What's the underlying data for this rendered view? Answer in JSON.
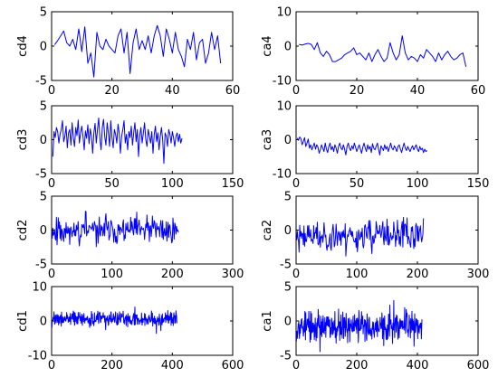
{
  "figure": {
    "background": "#ffffff",
    "line_color": "#0000ff"
  },
  "chart_data": [
    {
      "type": "line",
      "ylabel": "cd4",
      "xlim": [
        0,
        60
      ],
      "ylim": [
        -5,
        5
      ],
      "xticks": [
        0,
        20,
        40,
        60
      ],
      "yticks": [
        -5,
        0,
        5
      ],
      "x": [
        1,
        2,
        3,
        4,
        5,
        6,
        7,
        8,
        9,
        10,
        11,
        12,
        13,
        14,
        15,
        16,
        17,
        18,
        19,
        20,
        21,
        22,
        23,
        24,
        25,
        26,
        27,
        28,
        29,
        30,
        31,
        32,
        33,
        34,
        35,
        36,
        37,
        38,
        39,
        40,
        41,
        42,
        43,
        44,
        45,
        46,
        47,
        48,
        49,
        50,
        51,
        52,
        53,
        54,
        55,
        56
      ],
      "series": [
        {
          "values": [
            0.2,
            0.8,
            1.5,
            2.2,
            0.5,
            0.0,
            1.0,
            -0.5,
            2.5,
            -0.8,
            2.8,
            -2.5,
            -1.0,
            -4.5,
            2.0,
            0.0,
            -0.5,
            1.0,
            0.0,
            -0.5,
            -1.0,
            1.5,
            2.5,
            -1.0,
            2.0,
            -4.0,
            0.5,
            2.5,
            -0.5,
            0.8,
            -0.5,
            1.5,
            -1.0,
            1.5,
            3.0,
            1.5,
            -1.5,
            2.5,
            1.0,
            -1.0,
            2.0,
            -0.5,
            -1.5,
            -3.0,
            1.0,
            -0.5,
            2.0,
            -2.0,
            0.5,
            1.0,
            -2.5,
            -1.0,
            2.0,
            -0.5,
            1.5,
            -2.5
          ]
        }
      ]
    },
    {
      "type": "line",
      "ylabel": "ca4",
      "xlim": [
        0,
        60
      ],
      "ylim": [
        -10,
        10
      ],
      "xticks": [
        0,
        20,
        40,
        60
      ],
      "yticks": [
        -10,
        0,
        10
      ],
      "x": [
        1,
        2,
        3,
        4,
        5,
        6,
        7,
        8,
        9,
        10,
        11,
        12,
        13,
        14,
        15,
        16,
        17,
        18,
        19,
        20,
        21,
        22,
        23,
        24,
        25,
        26,
        27,
        28,
        29,
        30,
        31,
        32,
        33,
        34,
        35,
        36,
        37,
        38,
        39,
        40,
        41,
        42,
        43,
        44,
        45,
        46,
        47,
        48,
        49,
        50,
        51,
        52,
        53,
        54,
        55,
        56
      ],
      "series": [
        {
          "values": [
            0.5,
            0.3,
            0.6,
            0.8,
            0.5,
            -1.0,
            1.0,
            -2.0,
            -3.0,
            -1.5,
            -2.5,
            -4.5,
            -4.5,
            -4.0,
            -3.5,
            -2.5,
            -2.0,
            -1.5,
            -0.5,
            -2.5,
            -2.0,
            -3.0,
            -4.0,
            -2.0,
            -4.5,
            -2.5,
            -1.0,
            -3.0,
            -4.5,
            -3.5,
            1.0,
            -2.0,
            -4.0,
            -2.5,
            3.0,
            -2.0,
            -4.0,
            -3.0,
            -3.5,
            -4.5,
            -2.5,
            -3.5,
            -1.0,
            -2.0,
            -3.0,
            -4.5,
            -2.0,
            -4.0,
            -2.5,
            -1.5,
            -3.0,
            -4.0,
            -3.5,
            -2.5,
            -2.0,
            -6.0
          ]
        }
      ]
    },
    {
      "type": "line",
      "ylabel": "cd3",
      "xlim": [
        0,
        150
      ],
      "ylim": [
        -5,
        5
      ],
      "xticks": [
        0,
        50,
        100,
        150
      ],
      "yticks": [
        -5,
        0,
        5
      ],
      "x_step": 1,
      "series": [
        {
          "values": [
            -2.5,
            1.2,
            0.3,
            1.8,
            1.2,
            -0.5,
            0.8,
            1.5,
            2.8,
            -0.3,
            0.5,
            2.0,
            -1.2,
            1.0,
            1.5,
            -0.8,
            2.5,
            0.3,
            -1.0,
            1.8,
            0.6,
            2.9,
            -0.5,
            1.0,
            2.0,
            0.5,
            -1.5,
            1.3,
            0.2,
            2.2,
            -0.6,
            1.6,
            0.5,
            -2.0,
            1.0,
            2.4,
            -0.5,
            1.5,
            3.2,
            0.2,
            -1.5,
            1.8,
            3.0,
            0.5,
            -0.8,
            2.5,
            1.0,
            -1.0,
            2.8,
            0.3,
            -1.2,
            1.5,
            0.8,
            -0.5,
            2.3,
            1.0,
            -2.0,
            0.5,
            1.5,
            2.8,
            -0.5,
            0.8,
            -1.5,
            1.2,
            0.3,
            2.0,
            -0.8,
            1.0,
            2.5,
            -0.3,
            1.5,
            -2.5,
            0.6,
            1.8,
            -0.5,
            1.0,
            2.5,
            0.0,
            -1.0,
            1.5,
            0.5,
            -0.5,
            1.2,
            -2.0,
            0.8,
            2.0,
            -0.3,
            1.0,
            -1.5,
            0.5,
            1.8,
            0.0,
            -3.5,
            1.0,
            0.5,
            -1.0,
            1.5,
            0.8,
            -0.5,
            1.2,
            0.3,
            -1.0,
            0.5,
            1.0,
            -0.3,
            0.8,
            -0.5,
            0.2
          ]
        }
      ]
    },
    {
      "type": "line",
      "ylabel": "ca3",
      "xlim": [
        0,
        150
      ],
      "ylim": [
        -10,
        10
      ],
      "xticks": [
        0,
        50,
        100,
        150
      ],
      "yticks": [
        -10,
        0,
        10
      ],
      "x_step": 1,
      "series": [
        {
          "values": [
            0.5,
            -0.2,
            0.8,
            0.3,
            -1.5,
            -0.5,
            0.6,
            -2.0,
            -1.0,
            0.2,
            -2.5,
            -1.5,
            -3.0,
            -2.0,
            -1.0,
            -2.8,
            -1.5,
            -2.2,
            -4.0,
            -3.0,
            -1.5,
            -2.5,
            -3.5,
            -1.0,
            -2.8,
            -3.8,
            -2.0,
            -1.0,
            -3.0,
            -2.0,
            -3.5,
            -1.5,
            -2.5,
            -4.0,
            -2.0,
            -1.0,
            -2.5,
            -3.0,
            -1.5,
            -2.8,
            -4.5,
            -2.0,
            -1.0,
            -2.5,
            -3.2,
            -1.8,
            -2.8,
            -1.0,
            -2.2,
            -3.5,
            -2.5,
            -1.5,
            -2.8,
            -4.0,
            -2.2,
            -1.0,
            -2.5,
            -3.5,
            -1.5,
            -2.8,
            -2.0,
            -3.8,
            -1.2,
            -2.5,
            -3.0,
            -2.0,
            -1.0,
            -2.8,
            -4.5,
            -1.8,
            -2.5,
            -3.2,
            -1.5,
            -2.8,
            -2.0,
            -3.5,
            -2.2,
            -1.0,
            -2.5,
            -3.0,
            -1.8,
            -2.5,
            -3.5,
            -2.0,
            -1.5,
            -2.8,
            -3.8,
            -2.2,
            -1.0,
            -2.5,
            -3.2,
            -2.0,
            -2.8,
            -3.5,
            -2.5,
            -1.8,
            -3.0,
            -2.2,
            -1.5,
            -2.8,
            -3.5,
            -2.0,
            -3.0,
            -2.5,
            -3.8,
            -2.8,
            -3.5,
            -3.2
          ]
        }
      ]
    },
    {
      "type": "line",
      "ylabel": "cd2",
      "xlim": [
        0,
        300
      ],
      "ylim": [
        -5,
        5
      ],
      "xticks": [
        0,
        100,
        200,
        300
      ],
      "yticks": [
        -5,
        0,
        5
      ],
      "x_step": 1,
      "noise": {
        "count": 210,
        "center": 0.0,
        "amplitude": 2.2,
        "min": -3.0,
        "max": 3.0,
        "seed": 11
      }
    },
    {
      "type": "line",
      "ylabel": "ca2",
      "xlim": [
        0,
        300
      ],
      "ylim": [
        -5,
        5
      ],
      "xticks": [
        0,
        100,
        200,
        300
      ],
      "yticks": [
        -5,
        0,
        5
      ],
      "x_step": 1,
      "noise": {
        "count": 210,
        "center": -0.8,
        "amplitude": 2.4,
        "min": -5.0,
        "max": 3.0,
        "seed": 23
      }
    },
    {
      "type": "line",
      "ylabel": "cd1",
      "xlim": [
        0,
        600
      ],
      "ylim": [
        -10,
        10
      ],
      "xticks": [
        0,
        200,
        400,
        600
      ],
      "yticks": [
        -10,
        0,
        10
      ],
      "x_step": 1,
      "noise": {
        "count": 415,
        "center": 0.5,
        "amplitude": 2.2,
        "min": -4.0,
        "max": 5.0,
        "seed": 37
      }
    },
    {
      "type": "line",
      "ylabel": "ca1",
      "xlim": [
        0,
        600
      ],
      "ylim": [
        -5,
        5
      ],
      "xticks": [
        0,
        200,
        400,
        600
      ],
      "yticks": [
        -5,
        0,
        5
      ],
      "x_step": 1,
      "noise": {
        "count": 415,
        "center": -0.8,
        "amplitude": 2.3,
        "min": -5.0,
        "max": 3.0,
        "seed": 53
      }
    }
  ]
}
